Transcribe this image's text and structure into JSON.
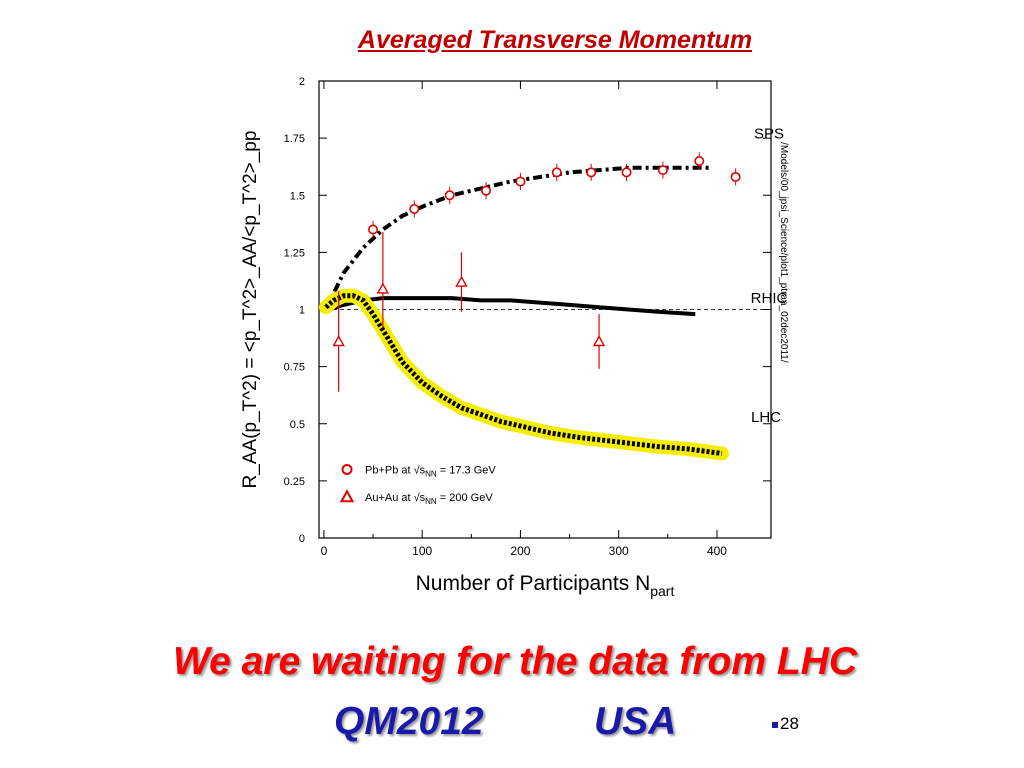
{
  "slide": {
    "title": "Averaged Transverse Momentum",
    "message": "We are waiting for the data from LHC",
    "conference": "QM2012",
    "location": "USA",
    "page_number": "28"
  },
  "colors": {
    "title": "#c00000",
    "message": "#ff0000",
    "conference": "#1a1aa8",
    "data_points": "#e00000",
    "lhc_band": "#f5ee00"
  },
  "chart_data": {
    "type": "line",
    "xlabel_main": "Number of Participants N",
    "xlabel_sub": "part",
    "ylabel": "R_AA(p_T^2) = <p_T^2>_AA/<p_T^2>_pp",
    "side_label": "/Models/00_jpsi_Science/plot1_ptraa_02dec2011/",
    "xlim": [
      -5,
      455
    ],
    "ylim": [
      0,
      2
    ],
    "x_ticks": [
      0,
      100,
      200,
      300,
      400
    ],
    "y_ticks": [
      0,
      0.25,
      0.5,
      0.75,
      1,
      1.25,
      1.5,
      1.75,
      2
    ],
    "y_tick_labels": [
      "0",
      "0.25",
      "0.5",
      "0.75",
      "1",
      "1.25",
      "1.5",
      "1.75",
      "2"
    ],
    "reference_line": 1,
    "curves": [
      {
        "label": "SPS",
        "style": "dashdot",
        "x": [
          2,
          20,
          40,
          60,
          80,
          100,
          130,
          160,
          190,
          220,
          250,
          280,
          310,
          340,
          370,
          395
        ],
        "y": [
          1.0,
          1.16,
          1.27,
          1.35,
          1.41,
          1.45,
          1.5,
          1.53,
          1.56,
          1.58,
          1.6,
          1.61,
          1.62,
          1.62,
          1.62,
          1.62
        ]
      },
      {
        "label": "RHIC",
        "style": "solid",
        "x": [
          5,
          20,
          40,
          60,
          80,
          100,
          130,
          160,
          190,
          220,
          250,
          280,
          310,
          340,
          378
        ],
        "y": [
          1.0,
          1.02,
          1.04,
          1.05,
          1.05,
          1.05,
          1.05,
          1.04,
          1.04,
          1.03,
          1.02,
          1.01,
          1.0,
          0.99,
          0.98
        ]
      },
      {
        "label": "LHC",
        "style": "dotted-band",
        "x": [
          2,
          10,
          20,
          30,
          40,
          50,
          60,
          70,
          80,
          100,
          120,
          140,
          160,
          180,
          200,
          230,
          260,
          300,
          340,
          370,
          405
        ],
        "y": [
          1.01,
          1.04,
          1.06,
          1.06,
          1.04,
          0.98,
          0.91,
          0.84,
          0.77,
          0.68,
          0.62,
          0.57,
          0.54,
          0.51,
          0.49,
          0.46,
          0.44,
          0.42,
          0.4,
          0.39,
          0.37
        ]
      }
    ],
    "series": [
      {
        "name": "Pb+Pb at √s_NN = 17.3 GeV",
        "legend_main": "Pb+Pb at √s",
        "legend_sub": "NN",
        "legend_tail": " = 17.3 GeV",
        "marker": "circle",
        "x": [
          50,
          92,
          128,
          165,
          200,
          237,
          272,
          308,
          345,
          382,
          419
        ],
        "y": [
          1.35,
          1.44,
          1.5,
          1.52,
          1.56,
          1.6,
          1.6,
          1.6,
          1.61,
          1.65,
          1.58
        ],
        "err": [
          0.02,
          0.02,
          0.02,
          0.02,
          0.02,
          0.02,
          0.02,
          0.02,
          0.02,
          0.02,
          0.02
        ]
      },
      {
        "name": "Au+Au at √s_NN = 200 GeV",
        "legend_main": "Au+Au at √s",
        "legend_sub": "NN",
        "legend_tail": " = 200 GeV",
        "marker": "triangle",
        "x": [
          15,
          60,
          140,
          280
        ],
        "y": [
          0.86,
          1.09,
          1.12,
          0.86
        ],
        "err_low": [
          0.22,
          0.17,
          0.13,
          0.12
        ],
        "err_high": [
          0.22,
          0.25,
          0.13,
          0.12
        ]
      }
    ]
  }
}
